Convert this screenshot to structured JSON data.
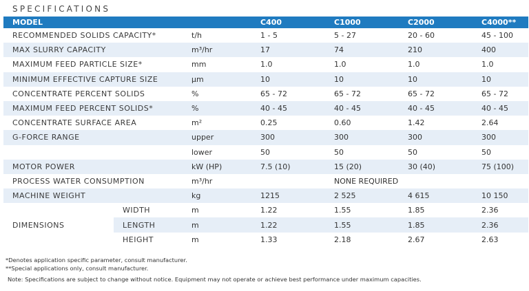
{
  "heading": "SPECIFICATIONS",
  "header": {
    "model": "MODEL",
    "models": [
      "C400",
      "C1000",
      "C2000",
      "C4000**"
    ]
  },
  "rows": [
    {
      "label": "RECOMMENDED SOLIDS CAPACITY*",
      "unit": "t/h",
      "values": [
        "1 - 5",
        "5 - 27",
        "20 - 60",
        "45 - 100"
      ]
    },
    {
      "label": "MAX SLURRY CAPACITY",
      "unit": "m³/hr",
      "values": [
        "17",
        "74",
        "210",
        "400"
      ]
    },
    {
      "label": "MAXIMUM FEED PARTICLE SIZE*",
      "unit": "mm",
      "values": [
        "1.0",
        "1.0",
        "1.0",
        "1.0"
      ]
    },
    {
      "label": "MINIMUM EFFECTIVE CAPTURE SIZE",
      "unit": "μm",
      "values": [
        "10",
        "10",
        "10",
        "10"
      ]
    },
    {
      "label": "CONCENTRATE PERCENT SOLIDS",
      "unit": "%",
      "values": [
        "65 - 72",
        "65 - 72",
        "65 - 72",
        "65 - 72"
      ]
    },
    {
      "label": "MAXIMUM FEED PERCENT SOLIDS*",
      "unit": "%",
      "values": [
        "40 - 45",
        "40 - 45",
        "40 - 45",
        "40 - 45"
      ]
    },
    {
      "label": "CONCENTRATE SURFACE AREA",
      "unit": "m²",
      "values": [
        "0.25",
        "0.60",
        "1.42",
        "2.64"
      ]
    },
    {
      "label": "G-FORCE RANGE",
      "unit": "upper",
      "values": [
        "300",
        "300",
        "300",
        "300"
      ]
    },
    {
      "label": "",
      "unit": "lower",
      "values": [
        "50",
        "50",
        "50",
        "50"
      ]
    },
    {
      "label": "MOTOR POWER",
      "unit": "kW (HP)",
      "values": [
        "7.5 (10)",
        "15 (20)",
        "30 (40)",
        "75 (100)"
      ]
    },
    {
      "label": "PROCESS WATER CONSUMPTION",
      "unit": "m³/hr",
      "merged_value": "NONE REQUIRED"
    },
    {
      "label": "MACHINE WEIGHT",
      "unit": "kg",
      "values": [
        "1215",
        "2 525",
        "4 615",
        "10 150"
      ]
    }
  ],
  "dimensions": {
    "label": "DIMENSIONS",
    "rows": [
      {
        "sub": "WIDTH",
        "unit": "m",
        "values": [
          "1.22",
          "1.55",
          "1.85",
          "2.36"
        ]
      },
      {
        "sub": "LENGTH",
        "unit": "m",
        "values": [
          "1.22",
          "1.55",
          "1.85",
          "2.36"
        ]
      },
      {
        "sub": "HEIGHT",
        "unit": "m",
        "values": [
          "1.33",
          "2.18",
          "2.67",
          "2.63"
        ]
      }
    ]
  },
  "notes": [
    "*Denotes application specific parameter, consult manufacturer.",
    "**Special applications only, consult manufacturer.",
    "Note: Specifications are subject to change without notice. Equipment may not operate or achieve best performance under maximum capacities."
  ]
}
